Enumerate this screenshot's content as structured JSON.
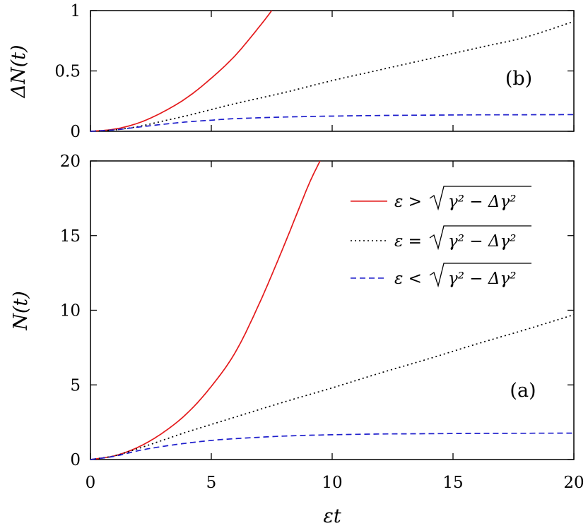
{
  "chart_data": [
    {
      "type": "line",
      "panel_label": "(b)",
      "xlabel": "",
      "ylabel": "ΔN(t)",
      "xlim": [
        0,
        20
      ],
      "ylim": [
        0,
        1
      ],
      "xticks": [
        "0",
        "5",
        "10",
        "15",
        "20"
      ],
      "xticks_shown": false,
      "yticks": [
        "0",
        "0.5",
        "1"
      ],
      "grid": false,
      "series": [
        {
          "color": "#e41a1c",
          "dash": "solid",
          "x": [
            0,
            1,
            2,
            3,
            4,
            5,
            6,
            7,
            7.5
          ],
          "y": [
            0,
            0.018,
            0.07,
            0.16,
            0.28,
            0.44,
            0.63,
            0.87,
            1.0
          ]
        },
        {
          "color": "#000000",
          "dash": "dotted",
          "x": [
            0,
            1,
            2,
            3,
            4,
            5,
            6,
            8,
            10,
            12,
            14,
            16,
            18,
            20
          ],
          "y": [
            0,
            0.012,
            0.04,
            0.085,
            0.13,
            0.18,
            0.23,
            0.32,
            0.42,
            0.51,
            0.6,
            0.69,
            0.78,
            0.91
          ]
        },
        {
          "color": "#1f1fcc",
          "dash": "dashed",
          "x": [
            0,
            1,
            2,
            3,
            4,
            5,
            6,
            8,
            10,
            12,
            14,
            16,
            18,
            20
          ],
          "y": [
            0,
            0.012,
            0.035,
            0.058,
            0.078,
            0.092,
            0.105,
            0.118,
            0.126,
            0.131,
            0.134,
            0.136,
            0.137,
            0.138
          ]
        }
      ]
    },
    {
      "type": "line",
      "panel_label": "(a)",
      "xlabel": "εt",
      "ylabel": "N(t)",
      "xlim": [
        0,
        20
      ],
      "ylim": [
        0,
        20
      ],
      "xticks": [
        "0",
        "5",
        "10",
        "15",
        "20"
      ],
      "yticks": [
        "0",
        "5",
        "10",
        "15",
        "20"
      ],
      "grid": false,
      "legend_position": "top-right",
      "series": [
        {
          "name": "ε > √(γ² − Δγ²)",
          "legend_lhs": "ε >",
          "legend_rad": "γ² − Δγ²",
          "color": "#e41a1c",
          "dash": "solid",
          "x": [
            0,
            1,
            2,
            3,
            4,
            5,
            6,
            7,
            8,
            9,
            9.5
          ],
          "y": [
            0,
            0.25,
            0.85,
            1.8,
            3.1,
            4.9,
            7.2,
            10.5,
            14.3,
            18.3,
            20.0
          ]
        },
        {
          "name": "ε = √(γ² − Δγ²)",
          "legend_lhs": "ε =",
          "legend_rad": "γ² − Δγ²",
          "color": "#000000",
          "dash": "dotted",
          "x": [
            0,
            1,
            2,
            3,
            4,
            5,
            6,
            8,
            10,
            12,
            14,
            16,
            18,
            20
          ],
          "y": [
            0,
            0.25,
            0.75,
            1.3,
            1.85,
            2.35,
            2.85,
            3.85,
            4.8,
            5.8,
            6.75,
            7.75,
            8.7,
            9.7
          ]
        },
        {
          "name": "ε < √(γ² − Δγ²)",
          "legend_lhs": "ε <",
          "legend_rad": "γ² − Δγ²",
          "color": "#1f1fcc",
          "dash": "dashed",
          "x": [
            0,
            1,
            2,
            3,
            4,
            5,
            6,
            8,
            10,
            12,
            14,
            16,
            18,
            20
          ],
          "y": [
            0,
            0.22,
            0.6,
            0.88,
            1.1,
            1.28,
            1.4,
            1.57,
            1.66,
            1.71,
            1.73,
            1.75,
            1.76,
            1.77
          ]
        }
      ]
    }
  ]
}
